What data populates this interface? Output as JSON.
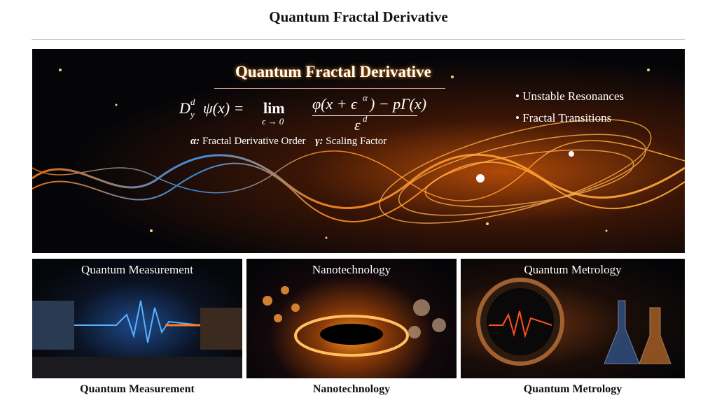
{
  "header": {
    "title": "Quantum Fractal Derivative"
  },
  "banner": {
    "title": "Quantum Fractal Derivative",
    "formula": {
      "operator": "D",
      "sup": "d",
      "sub": "y",
      "function": "ψ(x) =",
      "limit": "lim",
      "limit_sub": "ϵ → 0",
      "numerator_start": "φ(x + ϵ",
      "numerator_sup": "α",
      "numerator_end": ") − pΓ(x)",
      "denominator": "ε",
      "denominator_sup": "d"
    },
    "legend": [
      {
        "symbol": "α:",
        "text": "Fractal Derivative Order"
      },
      {
        "symbol": "γ:",
        "text": "Scaling Factor"
      }
    ],
    "bullets": [
      "Unstable Resonances",
      "Fractal Transitions"
    ]
  },
  "panels": [
    {
      "title": "Quantum Measurement",
      "caption": "Quantum Measurement"
    },
    {
      "title": "Nanotechnology",
      "caption": "Nanotechnology"
    },
    {
      "title": "Quantum Metrology",
      "caption": "Quantum Metrology"
    }
  ]
}
